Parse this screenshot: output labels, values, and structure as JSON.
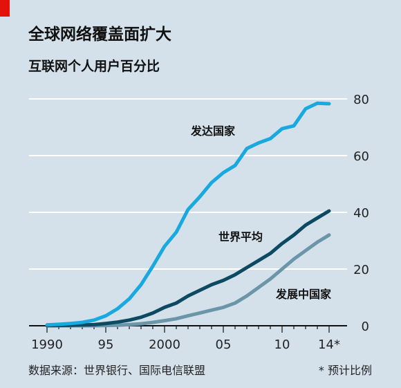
{
  "title": "全球网络覆盖面扩大",
  "subtitle": "互联网个人用户百分比",
  "source": "数据来源：世界银行、国际电信联盟",
  "footnote": "* 预计比例",
  "colors": {
    "background": "#d4e1ea",
    "accent_tag": "#e3120b",
    "developed": "#18a9df",
    "world": "#0c4a62",
    "developing": "#6b95a8",
    "grid": "#ffffff",
    "axis": "#111111"
  },
  "chart_data": {
    "type": "line",
    "xlim": [
      1990,
      2014
    ],
    "ylim": [
      0,
      80
    ],
    "x_ticks": [
      1990,
      1995,
      2000,
      2005,
      2010,
      2014
    ],
    "x_tick_labels": [
      "1990",
      "95",
      "2000",
      "05",
      "10",
      "14*"
    ],
    "y_ticks": [
      0,
      20,
      40,
      60,
      80
    ],
    "y_tick_labels": [
      "0",
      "20",
      "40",
      "60",
      "80"
    ],
    "grid": true,
    "series": [
      {
        "name": "发达国家",
        "color": "#18a9df",
        "x": [
          1990,
          1991,
          1992,
          1993,
          1994,
          1995,
          1996,
          1997,
          1998,
          1999,
          2000,
          2001,
          2002,
          2003,
          2004,
          2005,
          2006,
          2007,
          2008,
          2009,
          2010,
          2011,
          2012,
          2013,
          2014
        ],
        "values": [
          0.3,
          0.5,
          0.8,
          1.2,
          2.0,
          3.5,
          6.0,
          9.5,
          14.5,
          21.0,
          28.0,
          33.0,
          41.0,
          45.5,
          50.5,
          54.0,
          56.5,
          62.5,
          64.5,
          66.0,
          69.5,
          70.5,
          76.5,
          78.5,
          78.3
        ]
      },
      {
        "name": "世界平均",
        "color": "#0c4a62",
        "x": [
          1990,
          1991,
          1992,
          1993,
          1994,
          1995,
          1996,
          1997,
          1998,
          1999,
          2000,
          2001,
          2002,
          2003,
          2004,
          2005,
          2006,
          2007,
          2008,
          2009,
          2010,
          2011,
          2012,
          2013,
          2014
        ],
        "values": [
          0.05,
          0.1,
          0.2,
          0.3,
          0.4,
          0.8,
          1.3,
          2.0,
          3.0,
          4.5,
          6.5,
          8.0,
          10.5,
          12.5,
          14.5,
          16.0,
          18.0,
          20.5,
          23.0,
          25.5,
          29.0,
          32.0,
          35.5,
          38.0,
          40.5
        ]
      },
      {
        "name": "发展中国家",
        "color": "#6b95a8",
        "x": [
          1990,
          1991,
          1992,
          1993,
          1994,
          1995,
          1996,
          1997,
          1998,
          1999,
          2000,
          2001,
          2002,
          2003,
          2004,
          2005,
          2006,
          2007,
          2008,
          2009,
          2010,
          2011,
          2012,
          2013,
          2014
        ],
        "values": [
          0,
          0,
          0,
          0,
          0,
          0.1,
          0.2,
          0.4,
          0.7,
          1.2,
          1.8,
          2.5,
          3.5,
          4.5,
          5.5,
          6.5,
          8.0,
          10.5,
          13.5,
          16.5,
          20.0,
          23.5,
          26.5,
          29.5,
          32.0
        ]
      }
    ]
  }
}
